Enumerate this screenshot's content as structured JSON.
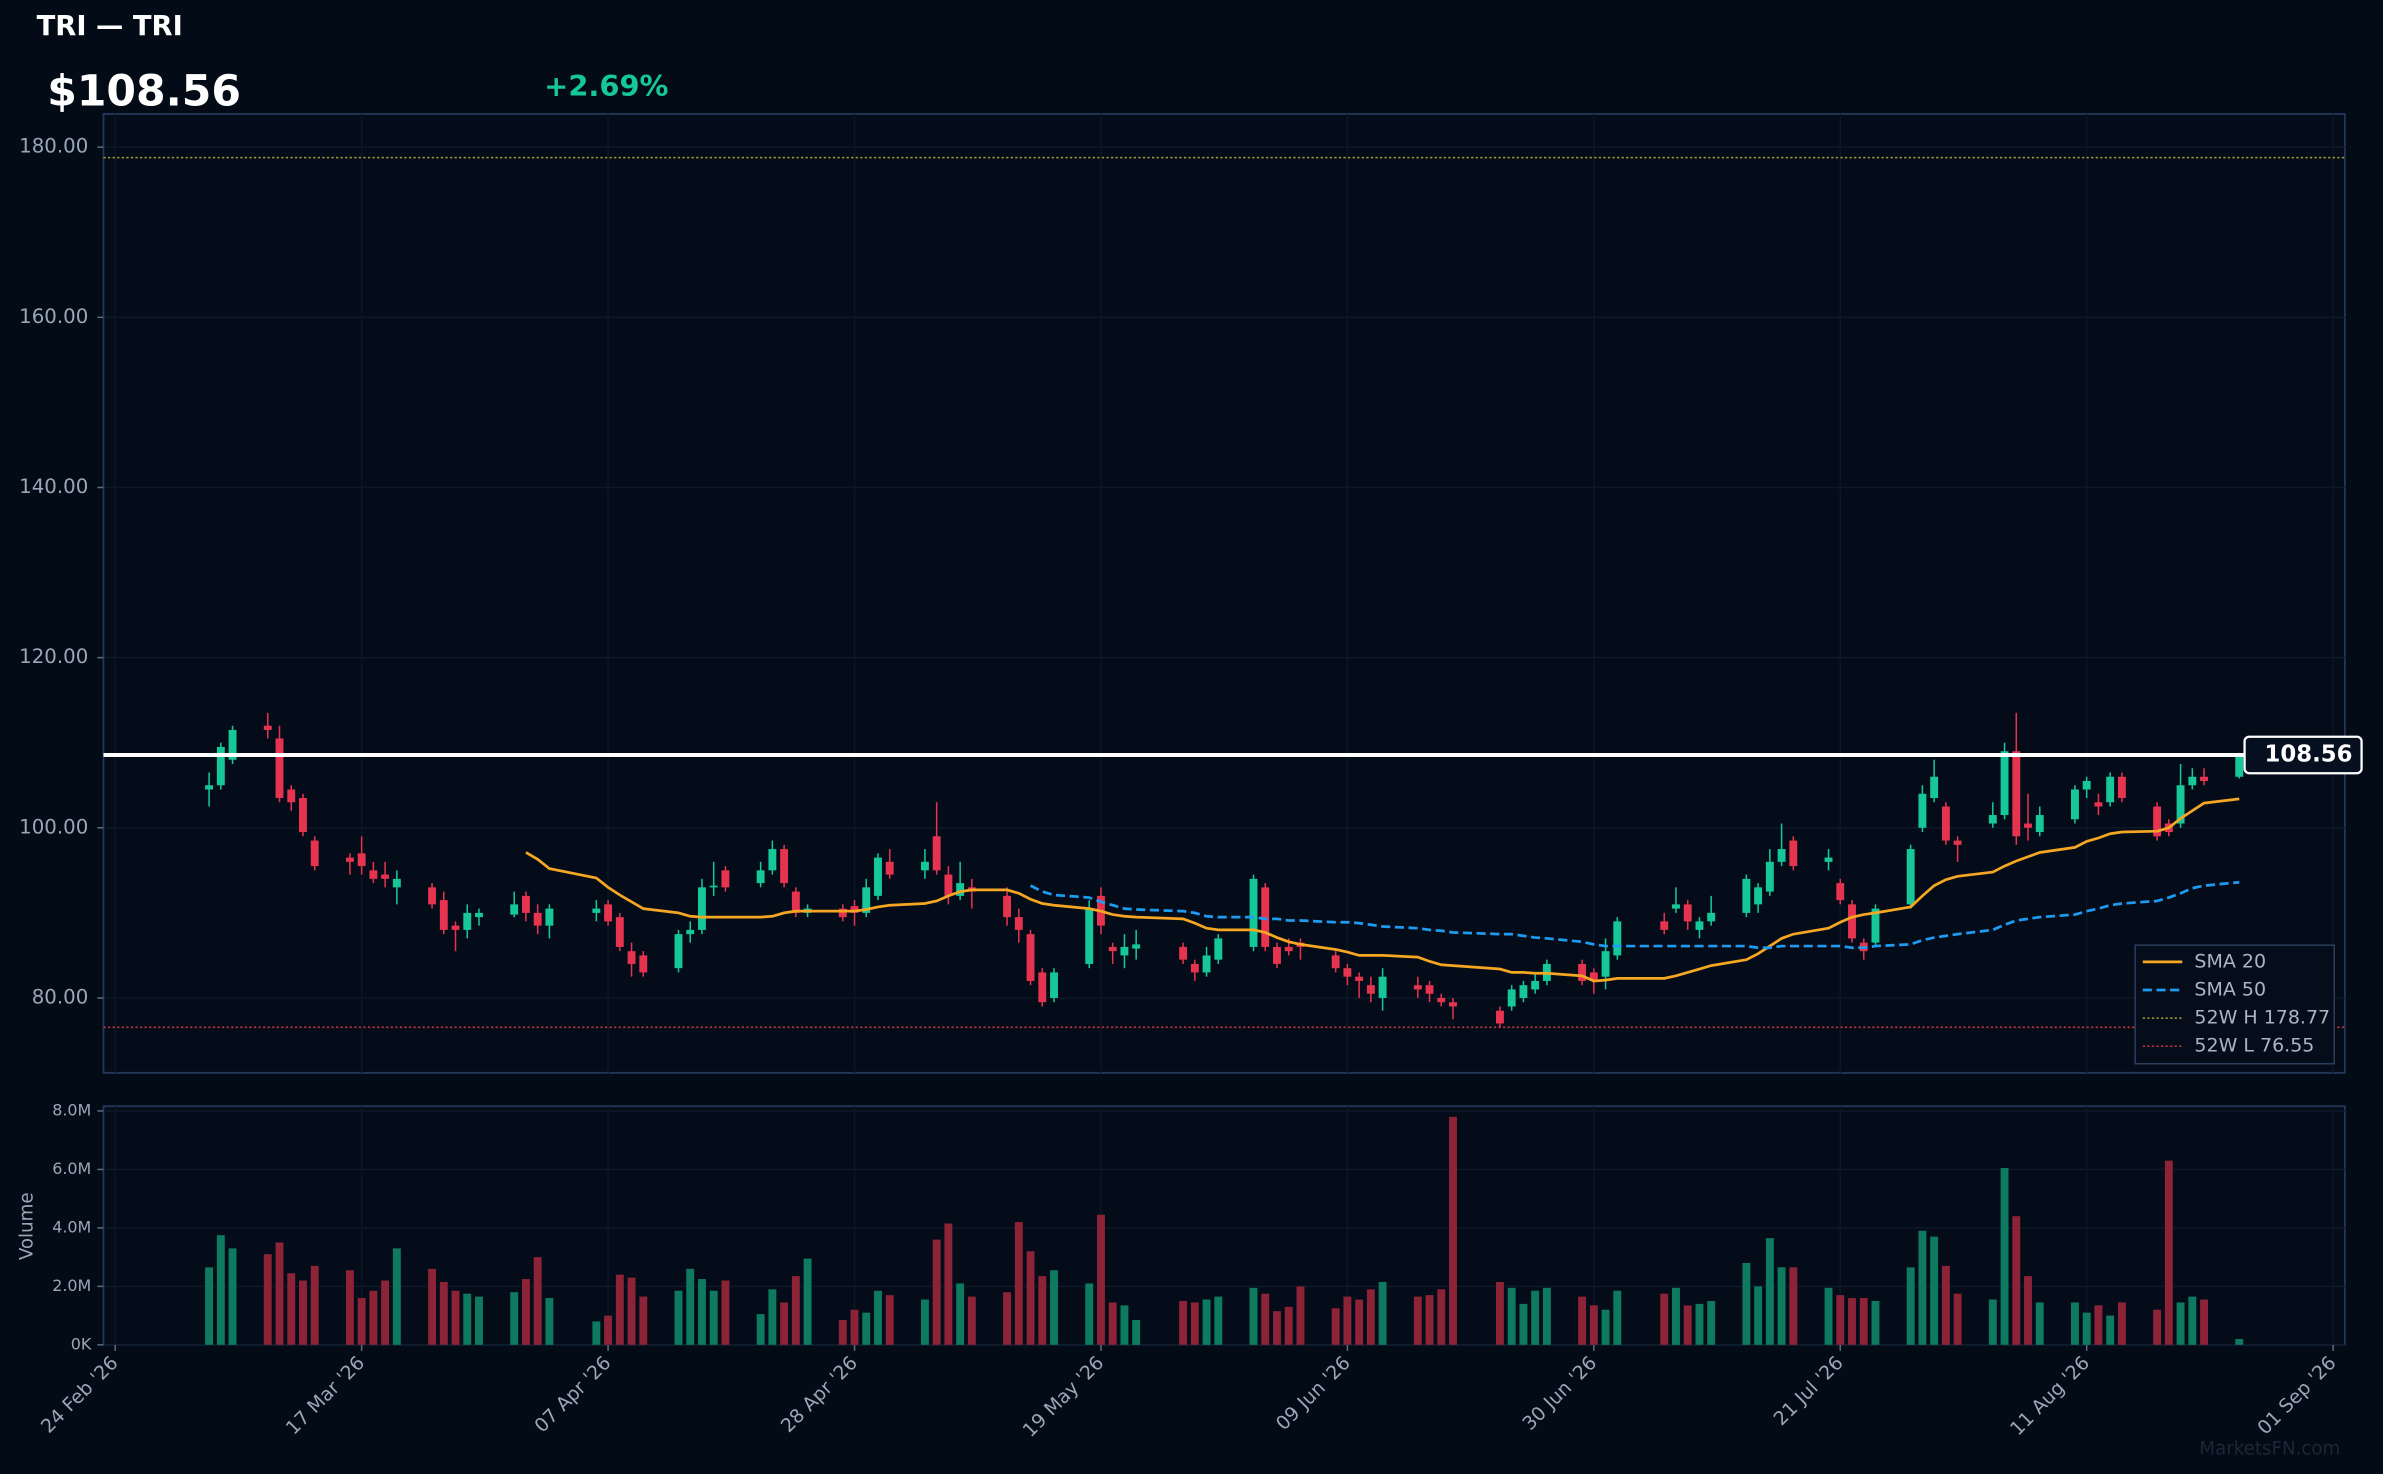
{
  "chart_data": {
    "type": "candlestick",
    "title": "TRI — TRI",
    "price_label": "$108.56",
    "change_label": "+2.69%",
    "watermark": "MarketsFN.com",
    "volume_ylabel": "Volume",
    "up_color": "#16c79a",
    "down_color": "#e6334f",
    "volume_up_color": "#0e7a60",
    "volume_down_color": "#8d2337",
    "grid": true,
    "x": [
      "2026-03-04",
      "2026-03-05",
      "2026-03-06",
      "2026-03-09",
      "2026-03-10",
      "2026-03-11",
      "2026-03-12",
      "2026-03-13",
      "2026-03-16",
      "2026-03-17",
      "2026-03-18",
      "2026-03-19",
      "2026-03-20",
      "2026-03-23",
      "2026-03-24",
      "2026-03-25",
      "2026-03-26",
      "2026-03-27",
      "2026-03-30",
      "2026-03-31",
      "2026-04-01",
      "2026-04-02",
      "2026-04-06",
      "2026-04-07",
      "2026-04-08",
      "2026-04-09",
      "2026-04-10",
      "2026-04-13",
      "2026-04-14",
      "2026-04-15",
      "2026-04-16",
      "2026-04-17",
      "2026-04-20",
      "2026-04-21",
      "2026-04-22",
      "2026-04-23",
      "2026-04-24",
      "2026-04-27",
      "2026-04-28",
      "2026-04-29",
      "2026-04-30",
      "2026-05-01",
      "2026-05-04",
      "2026-05-05",
      "2026-05-06",
      "2026-05-07",
      "2026-05-08",
      "2026-05-11",
      "2026-05-12",
      "2026-05-13",
      "2026-05-14",
      "2026-05-15",
      "2026-05-18",
      "2026-05-19",
      "2026-05-20",
      "2026-05-21",
      "2026-05-22",
      "2026-05-26",
      "2026-05-27",
      "2026-05-28",
      "2026-05-29",
      "2026-06-01",
      "2026-06-02",
      "2026-06-03",
      "2026-06-04",
      "2026-06-05",
      "2026-06-08",
      "2026-06-09",
      "2026-06-10",
      "2026-06-11",
      "2026-06-12",
      "2026-06-15",
      "2026-06-16",
      "2026-06-17",
      "2026-06-18",
      "2026-06-22",
      "2026-06-23",
      "2026-06-24",
      "2026-06-25",
      "2026-06-26",
      "2026-06-29",
      "2026-06-30",
      "2026-07-01",
      "2026-07-02",
      "2026-07-06",
      "2026-07-07",
      "2026-07-08",
      "2026-07-09",
      "2026-07-10",
      "2026-07-13",
      "2026-07-14",
      "2026-07-15",
      "2026-07-16",
      "2026-07-17",
      "2026-07-20",
      "2026-07-21",
      "2026-07-22",
      "2026-07-23",
      "2026-07-24",
      "2026-07-27",
      "2026-07-28",
      "2026-07-29",
      "2026-07-30",
      "2026-07-31",
      "2026-08-03",
      "2026-08-04",
      "2026-08-05",
      "2026-08-06",
      "2026-08-07",
      "2026-08-10",
      "2026-08-11",
      "2026-08-12",
      "2026-08-13",
      "2026-08-14",
      "2026-08-17",
      "2026-08-18",
      "2026-08-19",
      "2026-08-20",
      "2026-08-21",
      "2026-08-24"
    ],
    "open": [
      104.5,
      105,
      108,
      112,
      110.5,
      104.5,
      103.5,
      98.5,
      96.5,
      97,
      95,
      94.5,
      93,
      93,
      91.5,
      88.5,
      88,
      89.5,
      89.8,
      92,
      90,
      88.5,
      90,
      91,
      89.5,
      85.5,
      85,
      83.5,
      87.5,
      88,
      93,
      95,
      93.5,
      95,
      97.5,
      92.5,
      90,
      90.5,
      90.8,
      90,
      92,
      96,
      95,
      99,
      94.5,
      92,
      93,
      92,
      89.5,
      87.5,
      83,
      80,
      84,
      92,
      86,
      85,
      85.8,
      86,
      84,
      83,
      84.5,
      86,
      93,
      86,
      86,
      86.5,
      85,
      83.5,
      82.5,
      81.5,
      80,
      81.5,
      81.5,
      80,
      79.5,
      78.5,
      79,
      80,
      81,
      82,
      84,
      83,
      82.5,
      85,
      89,
      90.5,
      91,
      88,
      89,
      90,
      91,
      92.5,
      96,
      98.5,
      96,
      93.5,
      91,
      86.5,
      86.5,
      91,
      100,
      103.5,
      102.5,
      98.5,
      100.5,
      101.5,
      109,
      100.5,
      99.5,
      101,
      104.5,
      103,
      103,
      106,
      102.5,
      100.5,
      100.5,
      105,
      106,
      106
    ],
    "high": [
      106.5,
      110,
      112,
      113.5,
      112,
      105,
      104,
      99,
      97,
      99,
      96,
      96,
      95,
      93.5,
      92.5,
      89,
      91,
      90.5,
      92.5,
      92.5,
      91,
      91,
      91.5,
      91.5,
      90,
      86.5,
      85.5,
      88,
      89,
      94,
      96,
      95.5,
      96,
      98.5,
      98,
      93,
      91,
      91,
      91.5,
      94,
      97,
      97.5,
      97.5,
      103,
      95.5,
      96,
      94,
      93,
      90.5,
      88,
      83.5,
      83.5,
      91.5,
      93,
      86.5,
      87.5,
      88,
      86.5,
      84.5,
      86,
      87.5,
      94.5,
      93.5,
      86.5,
      87,
      87,
      85.5,
      84,
      83,
      82.5,
      83.5,
      82.5,
      82,
      80.5,
      80,
      79,
      81.5,
      82,
      83,
      84.5,
      84.5,
      83.5,
      87,
      89.5,
      90,
      93,
      91.5,
      89.5,
      92,
      94.5,
      93.5,
      97.5,
      100.5,
      99,
      97.5,
      94,
      91.5,
      87,
      91,
      98,
      105,
      108,
      103,
      99,
      103,
      110,
      113.5,
      104,
      102.5,
      105,
      106,
      104,
      106.5,
      106.5,
      103,
      101,
      107.5,
      107,
      107,
      108.8
    ],
    "low": [
      102.5,
      104.5,
      107.5,
      110.5,
      103,
      102,
      99,
      95,
      94.5,
      94.5,
      93.5,
      93,
      91,
      90.5,
      87.5,
      85.5,
      87,
      88.5,
      89.5,
      89,
      87.5,
      87,
      89,
      88.5,
      85.5,
      82.5,
      82.5,
      83,
      86.5,
      87.5,
      92,
      92.5,
      93,
      94.5,
      93,
      89.5,
      89.5,
      89,
      88.5,
      89.5,
      91.5,
      94,
      94,
      94.5,
      91,
      91.5,
      90.5,
      88.5,
      86.5,
      81.5,
      79,
      79.5,
      83.5,
      87.5,
      84,
      83.5,
      84.5,
      84,
      82,
      82.5,
      84,
      85.5,
      85.5,
      83.5,
      85,
      84.5,
      83,
      81.5,
      80,
      79.5,
      78.5,
      80,
      79.5,
      79,
      77.5,
      76.5,
      78.5,
      79.5,
      80.5,
      81.5,
      81.5,
      80.5,
      81,
      84.5,
      87.5,
      90,
      88,
      87,
      88.5,
      89.5,
      90,
      92,
      95.5,
      95,
      95,
      91,
      86.5,
      84.5,
      86,
      90.5,
      99.5,
      103,
      98,
      96,
      100,
      101,
      98,
      98.5,
      99,
      100.5,
      103.5,
      101.5,
      102.5,
      103,
      98.5,
      99,
      100,
      104.5,
      105,
      105.8
    ],
    "close": [
      105,
      109.5,
      111.5,
      111.5,
      103.5,
      103,
      99.5,
      95.5,
      96,
      95.5,
      94,
      94,
      94,
      91,
      88,
      88,
      90,
      90,
      91,
      90,
      88.5,
      90.5,
      90.5,
      89,
      86,
      84,
      83,
      87.5,
      88,
      93,
      93.2,
      93,
      95,
      97.5,
      93.5,
      90,
      90.5,
      89.5,
      90,
      93,
      96.5,
      94.5,
      96,
      95,
      92,
      93.5,
      92.5,
      89.5,
      88,
      82,
      79.5,
      83,
      90.5,
      88.5,
      85.5,
      86,
      86.3,
      84.5,
      83,
      85,
      87,
      94,
      86,
      84,
      85.5,
      86,
      83.5,
      82.5,
      82,
      80.5,
      82.5,
      81,
      80.5,
      79.5,
      79,
      77,
      81,
      81.5,
      82,
      84,
      82,
      82,
      85.5,
      89,
      88,
      91,
      89,
      89,
      90,
      94,
      93,
      96,
      97.5,
      95.5,
      96.5,
      91.5,
      87,
      85.5,
      90.5,
      97.5,
      104,
      106,
      98.5,
      98,
      101.5,
      109,
      99,
      100,
      101.5,
      104.5,
      105.5,
      102.5,
      106,
      103.5,
      99,
      99.5,
      105,
      106,
      105.5,
      108.56
    ],
    "volume": [
      2650000,
      3750000,
      3300000,
      3100000,
      3500000,
      2450000,
      2200000,
      2700000,
      2550000,
      1600000,
      1850000,
      2200000,
      3300000,
      2600000,
      2150000,
      1850000,
      1750000,
      1650000,
      1800000,
      2250000,
      3000000,
      1600000,
      800000,
      1000000,
      2400000,
      2300000,
      1650000,
      1850000,
      2600000,
      2250000,
      1850000,
      2200000,
      1050000,
      1900000,
      1450000,
      2350000,
      2950000,
      850000,
      1200000,
      1100000,
      1850000,
      1700000,
      1550000,
      3600000,
      4150000,
      2100000,
      1650000,
      1800000,
      4200000,
      3200000,
      2350000,
      2550000,
      2100000,
      4450000,
      1450000,
      1350000,
      850000,
      1500000,
      1450000,
      1550000,
      1650000,
      1950000,
      1750000,
      1150000,
      1300000,
      2000000,
      1250000,
      1650000,
      1550000,
      1900000,
      2150000,
      1650000,
      1700000,
      1900000,
      7800000,
      2150000,
      1950000,
      1400000,
      1850000,
      1950000,
      1650000,
      1350000,
      1200000,
      1850000,
      1750000,
      1950000,
      1350000,
      1400000,
      1500000,
      2800000,
      2000000,
      3650000,
      2650000,
      2650000,
      1950000,
      1700000,
      1600000,
      1600000,
      1500000,
      2650000,
      3900000,
      3700000,
      2700000,
      1750000,
      1550000,
      6050000,
      4400000,
      2350000,
      1450000,
      1450000,
      1100000,
      1350000,
      1000000,
      1450000,
      1200000,
      6300000,
      1450000,
      1650000,
      1550000,
      200000
    ],
    "series": [
      {
        "name": "SMA 20",
        "color": "#f5a623",
        "dash": false,
        "values": [
          null,
          null,
          null,
          null,
          null,
          null,
          null,
          null,
          null,
          null,
          null,
          null,
          null,
          null,
          null,
          null,
          null,
          null,
          null,
          97.1,
          96.3,
          95.2,
          94.1,
          93.0,
          92.1,
          91.3,
          90.5,
          90.0,
          89.6,
          89.5,
          89.5,
          89.5,
          89.5,
          89.6,
          90.0,
          90.2,
          90.2,
          90.2,
          90.2,
          90.4,
          90.7,
          90.9,
          91.1,
          91.4,
          92.0,
          92.5,
          92.7,
          92.7,
          92.3,
          91.6,
          91.1,
          90.9,
          90.5,
          90.2,
          89.8,
          89.6,
          89.5,
          89.3,
          88.8,
          88.2,
          88.0,
          88.0,
          87.7,
          87.1,
          86.6,
          86.3,
          85.7,
          85.4,
          85.0,
          85.0,
          85.0,
          84.8,
          84.3,
          83.9,
          83.8,
          83.4,
          83.0,
          83.0,
          82.9,
          82.9,
          82.6,
          82.0,
          82.1,
          82.3,
          82.3,
          82.6,
          83.0,
          83.4,
          83.8,
          84.5,
          85.2,
          86.1,
          87.0,
          87.5,
          88.2,
          88.9,
          89.5,
          89.8,
          90.0,
          90.7,
          92.0,
          93.2,
          93.9,
          94.3,
          94.8,
          95.5,
          96.1,
          96.6,
          97.1,
          97.7,
          98.4,
          98.8,
          99.3,
          99.5,
          99.6,
          100.0,
          101.1,
          102.0,
          102.9,
          103.4
        ]
      },
      {
        "name": "SMA 50",
        "color": "#1e9bf0",
        "dash": true,
        "values": [
          null,
          null,
          null,
          null,
          null,
          null,
          null,
          null,
          null,
          null,
          null,
          null,
          null,
          null,
          null,
          null,
          null,
          null,
          null,
          null,
          null,
          null,
          null,
          null,
          null,
          null,
          null,
          null,
          null,
          null,
          null,
          null,
          null,
          null,
          null,
          null,
          null,
          null,
          null,
          null,
          null,
          null,
          null,
          null,
          null,
          null,
          null,
          null,
          null,
          93.2,
          92.5,
          92.1,
          91.8,
          91.3,
          90.9,
          90.5,
          90.4,
          90.2,
          90.0,
          89.6,
          89.5,
          89.5,
          89.3,
          89.3,
          89.1,
          89.1,
          88.9,
          88.9,
          88.8,
          88.6,
          88.4,
          88.2,
          88.0,
          87.9,
          87.7,
          87.5,
          87.5,
          87.3,
          87.1,
          87.0,
          86.6,
          86.3,
          86.1,
          86.1,
          86.1,
          86.1,
          86.1,
          86.1,
          86.1,
          86.1,
          85.9,
          85.9,
          86.1,
          86.1,
          86.1,
          86.1,
          85.9,
          85.9,
          86.1,
          86.3,
          86.8,
          87.1,
          87.3,
          87.5,
          88.0,
          88.6,
          89.1,
          89.3,
          89.5,
          89.8,
          90.2,
          90.5,
          90.9,
          91.1,
          91.4,
          91.8,
          92.3,
          92.9,
          93.2,
          93.6
        ]
      }
    ],
    "hlines": [
      {
        "name": "52W H 178.77",
        "value": 178.77,
        "color": "#a89a33"
      },
      {
        "name": "52W L 76.55",
        "value": 76.55,
        "color": "#b8343f"
      }
    ],
    "last_price": {
      "value": 108.56,
      "label": "108.56"
    },
    "xlim": [
      "2026-02-23",
      "2026-09-02"
    ],
    "xticks": [
      {
        "value": "2026-02-24",
        "label": "24 Feb '26"
      },
      {
        "value": "2026-03-17",
        "label": "17 Mar '26"
      },
      {
        "value": "2026-04-07",
        "label": "07 Apr '26"
      },
      {
        "value": "2026-04-28",
        "label": "28 Apr '26"
      },
      {
        "value": "2026-05-19",
        "label": "19 May '26"
      },
      {
        "value": "2026-06-09",
        "label": "09 Jun '26"
      },
      {
        "value": "2026-06-30",
        "label": "30 Jun '26"
      },
      {
        "value": "2026-07-21",
        "label": "21 Jul '26"
      },
      {
        "value": "2026-08-11",
        "label": "11 Aug '26"
      },
      {
        "value": "2026-09-01",
        "label": "01 Sep '26"
      }
    ],
    "ylim": [
      71.2,
      183.9
    ],
    "yticks": [
      {
        "value": 80,
        "label": "80.00"
      },
      {
        "value": 100,
        "label": "100.00"
      },
      {
        "value": 120,
        "label": "120.00"
      },
      {
        "value": 140,
        "label": "140.00"
      },
      {
        "value": 160,
        "label": "160.00"
      },
      {
        "value": 180,
        "label": "180.00"
      }
    ],
    "volume_ylim": [
      0,
      8160000
    ],
    "volume_yticks": [
      {
        "value": 0,
        "label": "0K"
      },
      {
        "value": 2000000,
        "label": "2.0M"
      },
      {
        "value": 4000000,
        "label": "4.0M"
      },
      {
        "value": 6000000,
        "label": "6.0M"
      },
      {
        "value": 8000000,
        "label": "8.0M"
      }
    ]
  }
}
